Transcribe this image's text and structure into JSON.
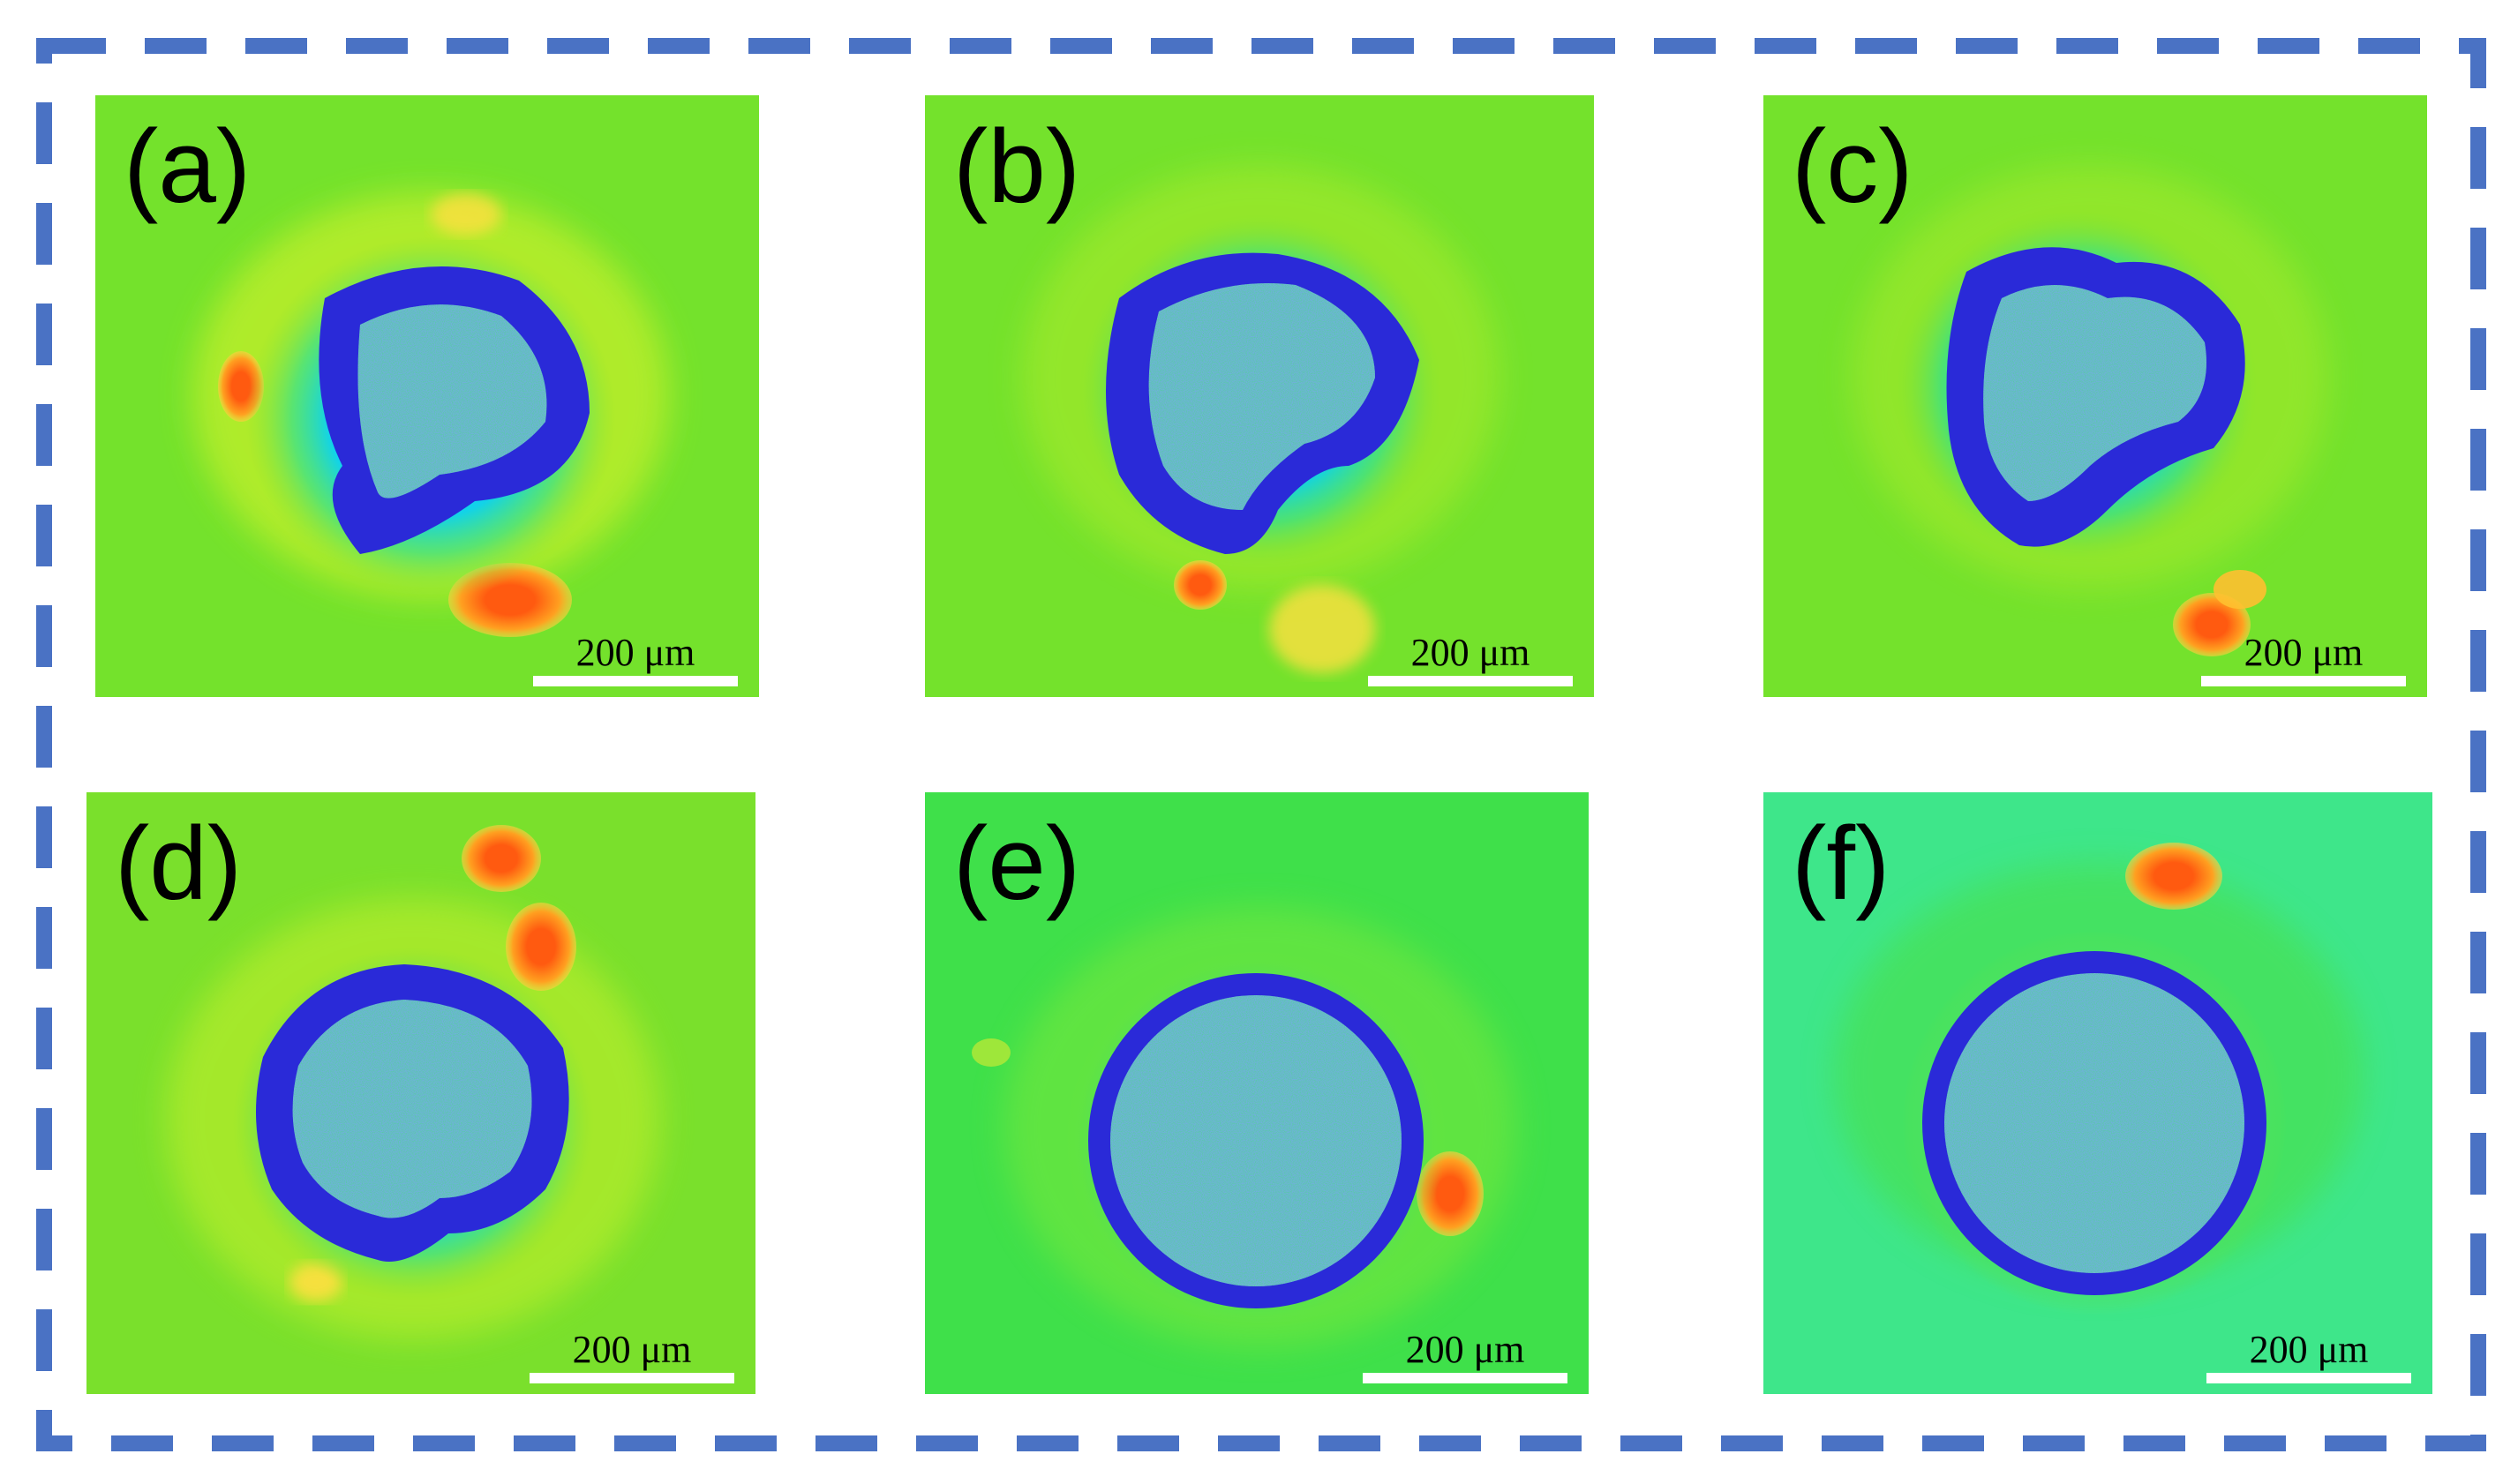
{
  "colors": {
    "frame_border": "#4a72c4",
    "background_green": "#6fe02a",
    "pit_blue": "#2a2ad8",
    "pit_center": "#60c8a0",
    "deposit_orange": "#ff6a10",
    "deposit_yellow": "#ffe040",
    "scale_bar": "#ffffff"
  },
  "panels": [
    {
      "label": "(a)",
      "scale_label": "200 μm"
    },
    {
      "label": "(b)",
      "scale_label": "200 μm"
    },
    {
      "label": "(c)",
      "scale_label": "200 μm"
    },
    {
      "label": "(d)",
      "scale_label": "200 μm"
    },
    {
      "label": "(e)",
      "scale_label": "200 μm"
    },
    {
      "label": "(f)",
      "scale_label": "200 μm"
    }
  ]
}
